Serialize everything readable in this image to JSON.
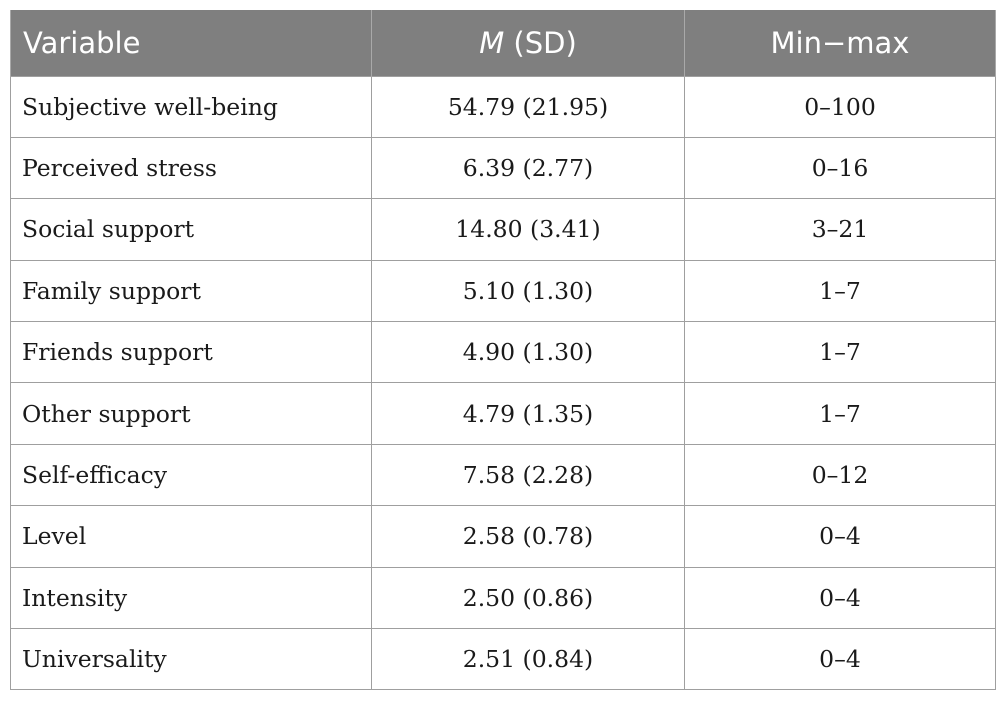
{
  "table": {
    "headers": {
      "variable": "Variable",
      "m_italic": "M",
      "m_rest": " (SD)",
      "range": "Min−max"
    },
    "rows": [
      {
        "variable": "Subjective well-being",
        "msd": "54.79 (21.95)",
        "range": "0–100"
      },
      {
        "variable": "Perceived stress",
        "msd": "6.39 (2.77)",
        "range": "0–16"
      },
      {
        "variable": "Social support",
        "msd": "14.80 (3.41)",
        "range": "3–21"
      },
      {
        "variable": "Family support",
        "msd": "5.10 (1.30)",
        "range": "1–7"
      },
      {
        "variable": "Friends support",
        "msd": "4.90 (1.30)",
        "range": "1–7"
      },
      {
        "variable": "Other support",
        "msd": "4.79 (1.35)",
        "range": "1–7"
      },
      {
        "variable": "Self-efficacy",
        "msd": "7.58 (2.28)",
        "range": "0–12"
      },
      {
        "variable": "Level",
        "msd": "2.58 (0.78)",
        "range": "0–4"
      },
      {
        "variable": "Intensity",
        "msd": "2.50 (0.86)",
        "range": "0–4"
      },
      {
        "variable": "Universality",
        "msd": "2.51 (0.84)",
        "range": "0–4"
      }
    ]
  },
  "colors": {
    "header_bg": "#7f7f7f",
    "header_text": "#ffffff",
    "border": "#9f9f9f"
  }
}
